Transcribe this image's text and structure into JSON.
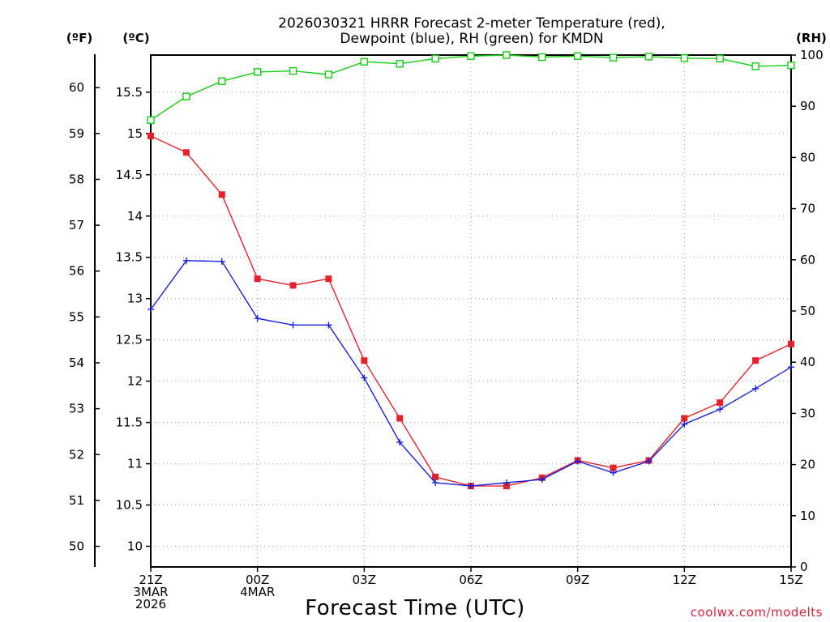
{
  "chart_data": {
    "type": "line",
    "title": [
      "2026030321 HRRR Forecast 2-meter Temperature (red),",
      "Dewpoint (blue), RH (green) for KMDN"
    ],
    "xlabel": "Forecast Time (UTC)",
    "units": {
      "fahrenheit": "(ºF)",
      "celsius": "(ºC)",
      "rh": "(RH)"
    },
    "credit": "coolwx.com/modelts",
    "x": [
      0,
      1,
      2,
      3,
      4,
      5,
      6,
      7,
      8,
      9,
      10,
      11,
      12,
      13,
      14,
      15,
      16,
      17,
      18
    ],
    "xlim": [
      0,
      18
    ],
    "x_ticks": [
      {
        "x": 0,
        "lines": [
          "21Z",
          "3MAR",
          "2026"
        ]
      },
      {
        "x": 3,
        "lines": [
          "00Z",
          "4MAR"
        ]
      },
      {
        "x": 6,
        "lines": [
          "03Z"
        ]
      },
      {
        "x": 9,
        "lines": [
          "06Z"
        ]
      },
      {
        "x": 12,
        "lines": [
          "09Z"
        ]
      },
      {
        "x": 15,
        "lines": [
          "12Z"
        ]
      },
      {
        "x": 18,
        "lines": [
          "15Z"
        ]
      }
    ],
    "celsius_axis": {
      "ylim": [
        9.75,
        15.95
      ],
      "ticks": [
        "10",
        "10.5",
        "11",
        "11.5",
        "12",
        "12.5",
        "13",
        "13.5",
        "14",
        "14.5",
        "15",
        "15.5"
      ]
    },
    "fahrenheit_axis": {
      "ticks": [
        "50",
        "51",
        "52",
        "53",
        "54",
        "55",
        "56",
        "57",
        "58",
        "59",
        "60"
      ]
    },
    "rh_axis": {
      "ylim": [
        0,
        100
      ],
      "ticks": [
        "0",
        "10",
        "20",
        "30",
        "40",
        "50",
        "60",
        "70",
        "80",
        "90",
        "100"
      ]
    },
    "series": [
      {
        "name": "Temperature",
        "axis": "celsius",
        "color": "#e8202a",
        "marker": "filled-square",
        "values": [
          14.97,
          14.77,
          14.26,
          13.24,
          13.16,
          13.24,
          12.25,
          11.55,
          10.84,
          10.73,
          10.73,
          10.83,
          11.04,
          10.95,
          11.04,
          11.55,
          11.74,
          12.25,
          12.45
        ]
      },
      {
        "name": "Dewpoint",
        "axis": "celsius",
        "color": "#1820e0",
        "marker": "plus",
        "values": [
          12.87,
          13.46,
          13.45,
          12.76,
          12.68,
          12.68,
          12.04,
          11.26,
          10.77,
          10.73,
          10.77,
          10.81,
          11.03,
          10.89,
          11.03,
          11.48,
          11.66,
          11.91,
          12.17
        ]
      },
      {
        "name": "RH",
        "axis": "rh",
        "color": "#10d010",
        "marker": "open-square",
        "values": [
          87.3,
          91.9,
          94.9,
          96.7,
          96.9,
          96.2,
          98.7,
          98.3,
          99.3,
          99.8,
          100,
          99.6,
          99.8,
          99.5,
          99.7,
          99.4,
          99.3,
          97.8,
          98.0
        ]
      }
    ]
  }
}
